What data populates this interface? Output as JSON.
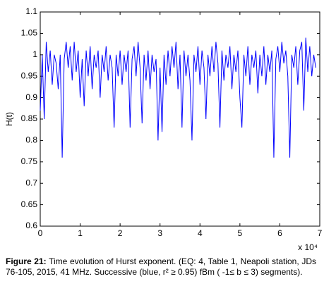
{
  "chart_data": {
    "type": "line",
    "ylabel": "H(t)",
    "x_multiplier": "x 10⁴",
    "color": "#0000ff",
    "x": [
      0,
      500,
      1000,
      1500,
      2000,
      2500,
      3000,
      3500,
      4000,
      4500,
      5000,
      5500,
      6000,
      6500,
      7000,
      7500,
      8000,
      8500,
      9000,
      9500,
      10000,
      10500,
      11000,
      11500,
      12000,
      12500,
      13000,
      13500,
      14000,
      14500,
      15000,
      15500,
      16000,
      16500,
      17000,
      17500,
      18000,
      18500,
      19000,
      19500,
      20000,
      20500,
      21000,
      21500,
      22000,
      22500,
      23000,
      23500,
      24000,
      24500,
      25000,
      25500,
      26000,
      26500,
      27000,
      27500,
      28000,
      28500,
      29000,
      29500,
      30000,
      30500,
      31000,
      31500,
      32000,
      32500,
      33000,
      33500,
      34000,
      34500,
      35000,
      35500,
      36000,
      36500,
      37000,
      37500,
      38000,
      38500,
      39000,
      39500,
      40000,
      40500,
      41000,
      41500,
      42000,
      42500,
      43000,
      43500,
      44000,
      44500,
      45000,
      45500,
      46000,
      46500,
      47000,
      47500,
      48000,
      48500,
      49000,
      49500,
      50000,
      50500,
      51000,
      51500,
      52000,
      52500,
      53000,
      53500,
      54000,
      54500,
      55000,
      55500,
      56000,
      56500,
      57000,
      57500,
      58000,
      58500,
      59000,
      59500,
      60000,
      60500,
      61000,
      61500,
      62000,
      62500,
      63000,
      63500,
      64000,
      64500,
      65000,
      65500,
      66000,
      66500,
      67000,
      67500,
      68000,
      68500,
      69000
    ],
    "values": [
      0.87,
      1.0,
      0.85,
      1.03,
      0.96,
      1.01,
      0.93,
      1.0,
      0.98,
      0.92,
      1.0,
      0.76,
      0.99,
      1.03,
      0.97,
      1.02,
      0.94,
      1.03,
      0.96,
      1.01,
      0.9,
      0.99,
      0.88,
      1.01,
      0.95,
      1.02,
      0.92,
      1.0,
      0.97,
      1.01,
      0.9,
      1.0,
      0.96,
      1.02,
      0.94,
      1.0,
      0.97,
      0.83,
      1.0,
      0.95,
      1.01,
      0.93,
      1.0,
      0.96,
      1.01,
      0.83,
      0.99,
      1.02,
      0.95,
      1.03,
      0.97,
      0.84,
      1.0,
      0.94,
      1.01,
      0.92,
      1.0,
      0.96,
      0.99,
      0.8,
      0.97,
      0.82,
      1.0,
      0.93,
      1.01,
      0.95,
      1.02,
      0.97,
      1.03,
      0.92,
      1.0,
      0.83,
      1.01,
      0.95,
      1.0,
      0.94,
      0.8,
      1.0,
      0.96,
      1.02,
      0.93,
      1.01,
      0.97,
      0.85,
      1.0,
      0.95,
      1.02,
      0.96,
      1.03,
      0.98,
      0.83,
      1.01,
      0.94,
      1.0,
      0.97,
      1.02,
      0.92,
      1.0,
      0.96,
      1.01,
      0.9,
      0.83,
      1.0,
      0.95,
      1.02,
      0.93,
      1.0,
      0.97,
      1.01,
      0.91,
      1.0,
      0.95,
      1.02,
      0.93,
      1.0,
      0.96,
      1.01,
      0.76,
      0.99,
      1.02,
      0.96,
      1.03,
      0.98,
      1.01,
      0.95,
      0.76,
      1.0,
      0.97,
      1.02,
      0.93,
      1.01,
      1.03,
      0.87,
      1.04,
      0.96,
      1.02,
      0.95,
      1.0,
      0.97
    ],
    "xlim": [
      0,
      70000
    ],
    "xticks": [
      0,
      {
        "value": 10000,
        "label": "1"
      },
      {
        "value": 20000,
        "label": "2"
      },
      {
        "value": 30000,
        "label": "3"
      },
      {
        "value": 40000,
        "label": "4"
      },
      {
        "value": 50000,
        "label": "5"
      },
      {
        "value": 60000,
        "label": "6"
      },
      {
        "value": 70000,
        "label": "7"
      }
    ],
    "ylim": [
      0.6,
      1.1
    ],
    "yticks": [
      0.6,
      0.65,
      0.7,
      0.75,
      0.8,
      0.85,
      0.9,
      0.95,
      1,
      1.05,
      1.1
    ]
  },
  "caption": {
    "label": "Figure 21:",
    "text": "Time evolution of Hurst exponent. (EQ: 4, Table 1, Neapoli station, JDs 76-105, 2015, 41 MHz. Successive (blue, r² ≥ 0.95) fBm ( -1≤ b ≤ 3) segments)."
  }
}
